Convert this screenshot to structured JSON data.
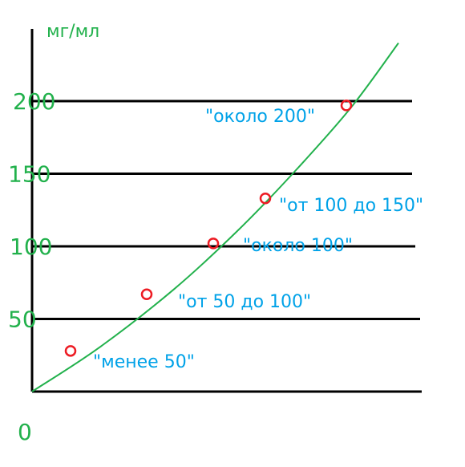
{
  "chart_data": {
    "type": "line",
    "ylabel": "мг/мл",
    "xlabel": "",
    "origin_label": "0",
    "y_ticks": [
      50,
      100,
      150,
      200
    ],
    "ylim": [
      0,
      240
    ],
    "grid": true,
    "colors": {
      "curve": "#22b14c",
      "markers": "#ed1c24",
      "tick_labels": "#22b14c",
      "annotations": "#00a2e8",
      "axes": "#000000"
    },
    "series": [
      {
        "values": [
          0,
          30,
          70,
          110,
          150,
          195,
          240
        ]
      }
    ],
    "markers": [
      {
        "y": 28,
        "label": "\"менее 50\""
      },
      {
        "y": 67,
        "label": "\"от 50 до 100\""
      },
      {
        "y": 102,
        "label": "\"около 100\""
      },
      {
        "y": 133,
        "label": "\"от 100 до 150\""
      },
      {
        "y": 197,
        "label": "\"около 200\""
      }
    ]
  }
}
